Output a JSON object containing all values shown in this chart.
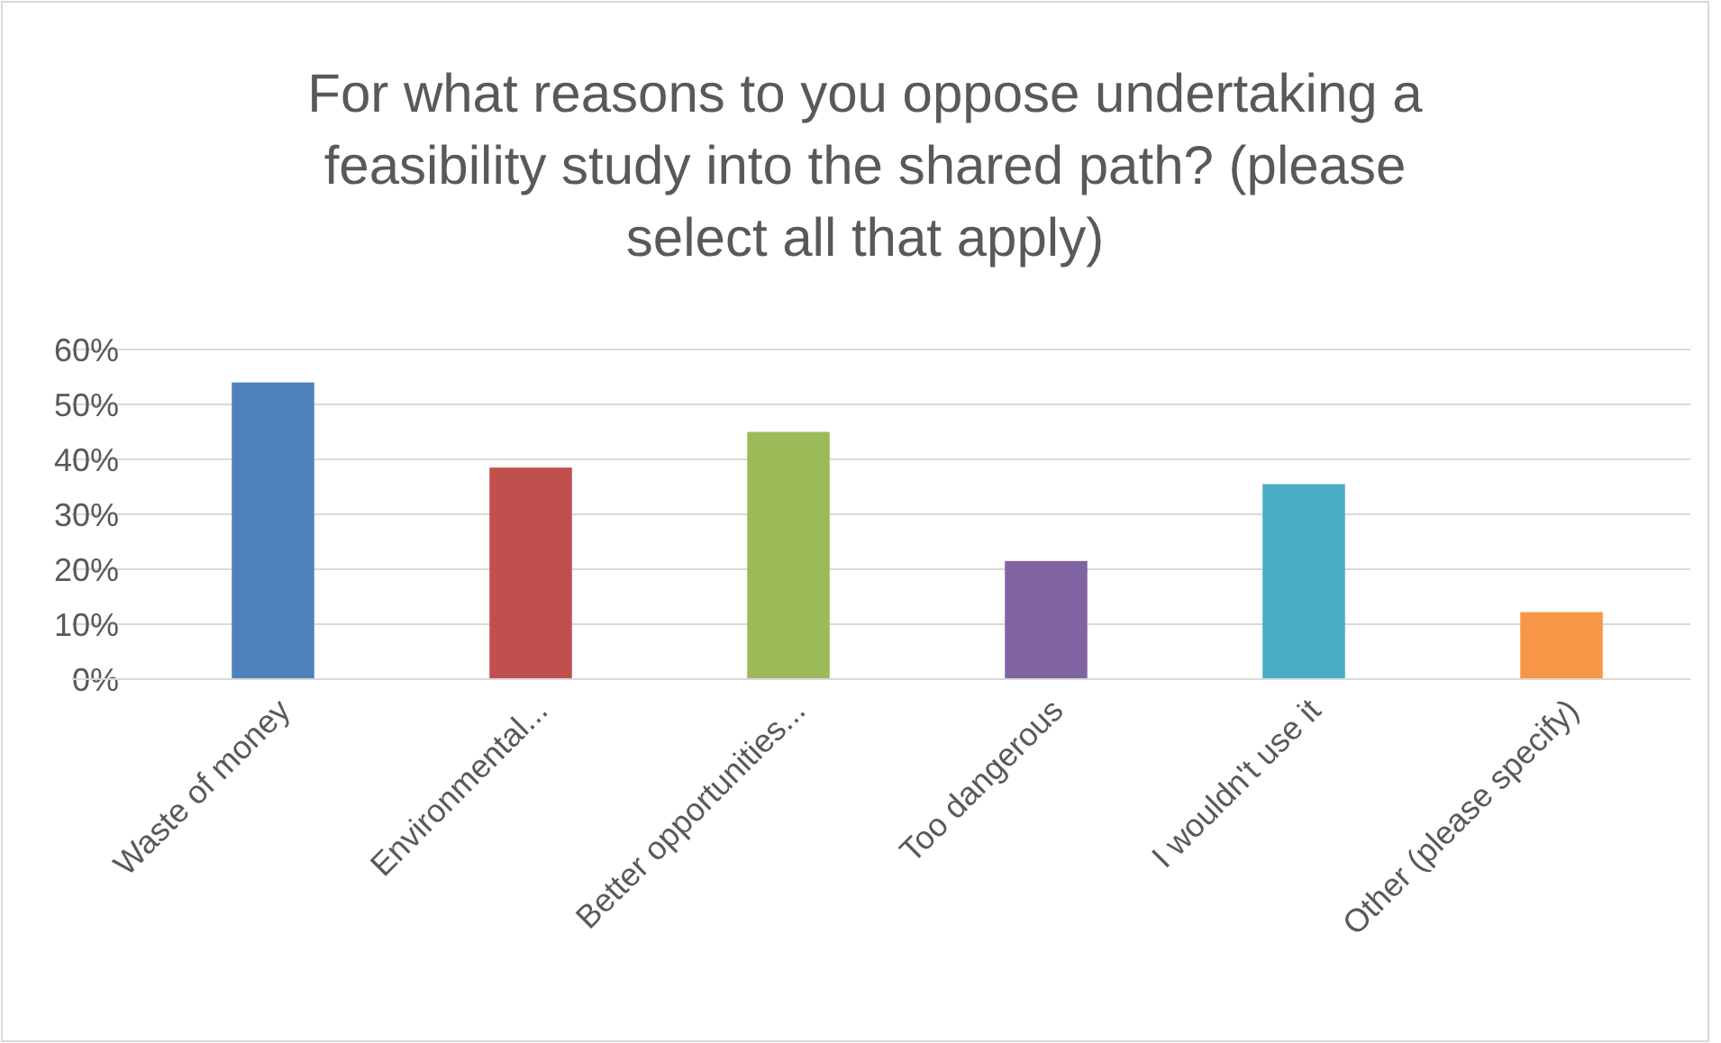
{
  "chart_data": {
    "type": "bar",
    "title": "For what reasons to you oppose undertaking a feasibility study into the shared path? (please select all that apply)",
    "categories": [
      "Waste of money",
      "Environmental...",
      "Better opportunities...",
      "Too dangerous",
      "I wouldn't use it",
      "Other (please specify)"
    ],
    "values": [
      54,
      38.5,
      45,
      21.5,
      35.5,
      12.2
    ],
    "colors": [
      "#4f81bd",
      "#c0504d",
      "#9bbb59",
      "#8064a2",
      "#4bacc6",
      "#f79646"
    ],
    "ylim": [
      0,
      60
    ],
    "yticks": [
      {
        "value": 0,
        "label": "0%"
      },
      {
        "value": 10,
        "label": "10%"
      },
      {
        "value": 20,
        "label": "20%"
      },
      {
        "value": 30,
        "label": "30%"
      },
      {
        "value": 40,
        "label": "40%"
      },
      {
        "value": 50,
        "label": "50%"
      },
      {
        "value": 60,
        "label": "60%"
      }
    ],
    "grid": "y"
  }
}
